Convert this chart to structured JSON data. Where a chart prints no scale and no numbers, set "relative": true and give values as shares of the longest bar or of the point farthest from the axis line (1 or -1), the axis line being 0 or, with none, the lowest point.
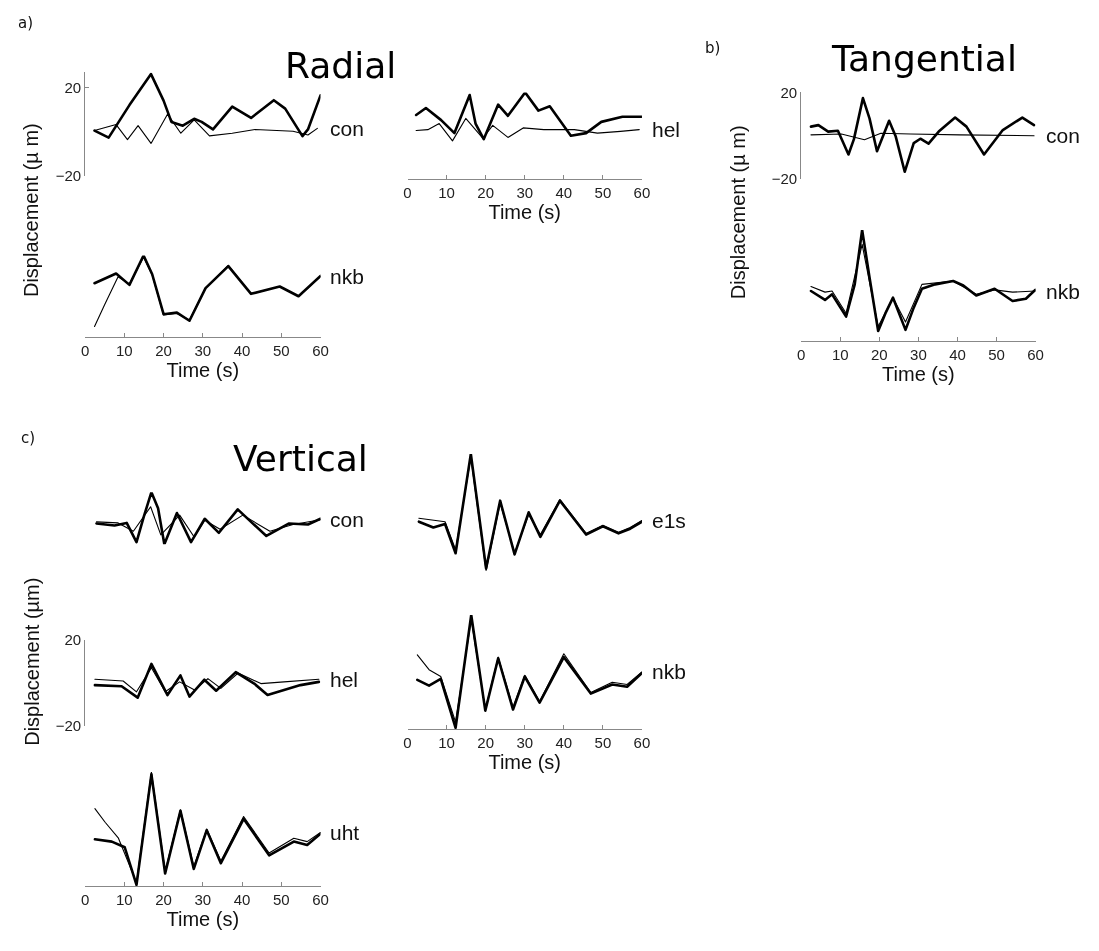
{
  "chart_data": [
    {
      "type": "line",
      "title": "Radial",
      "ylabel": "Displacement (µ m)",
      "annotations": [
        "a)",
        "con"
      ],
      "xlim": [
        0,
        60
      ],
      "ylim": [
        -20,
        27
      ],
      "yticks": [
        -20,
        20
      ],
      "tick_labels": "y",
      "series": [
        {
          "color": "#000000",
          "x": [
            2.4,
            6,
            11.3,
            16.8,
            20,
            22,
            24.9,
            27.8,
            29.7,
            32.6,
            37.5,
            42.3,
            48.1,
            51,
            55.4,
            56.8,
            60
          ],
          "values": [
            0.5,
            -2.7,
            12,
            26,
            14,
            4.4,
            2.7,
            5.8,
            4.4,
            1,
            11.3,
            6.2,
            14.2,
            10.4,
            -2,
            1,
            16.4
          ]
        },
        {
          "color": "#000000",
          "x": [
            2.4,
            7.9,
            10.8,
            13.5,
            16.8,
            21,
            24.4,
            27.8,
            31.7,
            37.5,
            43.3,
            53,
            56.8,
            59.2
          ],
          "values": [
            0.5,
            3.2,
            -3.6,
            2.7,
            -5.3,
            7.9,
            -0.7,
            5.3,
            -1.9,
            -0.7,
            1,
            0.2,
            -1.5,
            1.5
          ]
        }
      ]
    },
    {
      "type": "line",
      "xlabel": "Time (s)",
      "annotations": [
        "hel"
      ],
      "relative": true,
      "xlim": [
        0,
        60
      ],
      "xticks": [
        0,
        10,
        20,
        30,
        40,
        50,
        60
      ],
      "tick_labels": "x",
      "series": [
        {
          "color": "#000000",
          "x": [
            2.2,
            4.7,
            8.6,
            12,
            15.9,
            17.4,
            19.5,
            23.2,
            25.7,
            30.1,
            33.5,
            36.4,
            41.8,
            45.7,
            49.6,
            55,
            60
          ],
          "values": [
            0.74,
            0.82,
            0.68,
            0.53,
            0.97,
            0.64,
            0.46,
            0.86,
            0.73,
            1,
            0.79,
            0.84,
            0.5,
            0.53,
            0.66,
            0.72,
            0.72
          ]
        },
        {
          "color": "#000000",
          "x": [
            2.2,
            5.2,
            8.1,
            11.5,
            14.9,
            19.3,
            21.8,
            25.7,
            29.6,
            34.9,
            42.7,
            48.6,
            54.5,
            59.3
          ],
          "values": [
            0.56,
            0.57,
            0.64,
            0.44,
            0.7,
            0.47,
            0.62,
            0.48,
            0.59,
            0.57,
            0.57,
            0.53,
            0.55,
            0.57
          ]
        }
      ]
    },
    {
      "type": "line",
      "xlabel": "Time (s)",
      "annotations": [
        "nkb"
      ],
      "relative": true,
      "xlim": [
        0,
        60
      ],
      "xticks": [
        0,
        10,
        20,
        30,
        40,
        50,
        60
      ],
      "tick_labels": "x",
      "series": [
        {
          "color": "#000000",
          "x": [
            2.4,
            7.9,
            11.3,
            14.9,
            17.1,
            20,
            23.4,
            26.6,
            30.7,
            36.5,
            42.3,
            49.6,
            54.4,
            60
          ],
          "values": [
            0.66,
            0.78,
            0.64,
            1,
            0.77,
            0.28,
            0.3,
            0.2,
            0.6,
            0.87,
            0.53,
            0.62,
            0.5,
            0.75
          ]
        },
        {
          "color": "#000000",
          "x": [
            2.4,
            5,
            8.4,
            11.3,
            14.9,
            17.1,
            20,
            23.4,
            26.6,
            30.7,
            36.5,
            42.3,
            49.6,
            54.4,
            60
          ],
          "values": [
            0.13,
            0.4,
            0.74,
            0.65,
            0.98,
            0.76,
            0.27,
            0.29,
            0.21,
            0.6,
            0.88,
            0.53,
            0.62,
            0.5,
            0.74
          ]
        }
      ]
    },
    {
      "type": "line",
      "title": "Tangential",
      "ylabel": "Displacement (µ m)",
      "annotations": [
        "b)",
        "con"
      ],
      "xlim": [
        0,
        60
      ],
      "ylim": [
        -20,
        20
      ],
      "yticks": [
        -20,
        20
      ],
      "tick_labels": "y",
      "series": [
        {
          "color": "#000000",
          "x": [
            2.5,
            4.4,
            6.9,
            9.4,
            12.1,
            13.5,
            15.8,
            17.5,
            19.4,
            22.5,
            24.2,
            26.5,
            28.8,
            30.5,
            32.6,
            35.2,
            39.4,
            42.3,
            46.8,
            51.6,
            56.6,
            59.6
          ],
          "values": [
            4.2,
            4.9,
            1.9,
            2.3,
            -8.7,
            -1.6,
            17.4,
            7.9,
            -7.2,
            6.9,
            -0.4,
            -16.7,
            -3.4,
            -1.4,
            -3.7,
            1.9,
            8.4,
            4.2,
            -8.7,
            2.6,
            8.4,
            4.9
          ]
        },
        {
          "color": "#000000",
          "x": [
            2.5,
            10.3,
            16.2,
            20.4,
            28,
            40.6,
            59.6
          ],
          "values": [
            0.4,
            0.8,
            -1.9,
            1.1,
            0.8,
            0.4,
            0
          ]
        }
      ]
    },
    {
      "type": "line",
      "xlabel": "Time (s)",
      "annotations": [
        "nkb"
      ],
      "relative": true,
      "xlim": [
        0,
        60
      ],
      "xticks": [
        0,
        10,
        20,
        30,
        40,
        50,
        60
      ],
      "tick_labels": "x",
      "series": [
        {
          "color": "#000000",
          "x": [
            2.5,
            6.1,
            7.9,
            11.5,
            13.7,
            15.6,
            17.5,
            19.7,
            21.7,
            23.5,
            26.7,
            28.8,
            30.9,
            34.3,
            38.9,
            41.5,
            44.8,
            49.5,
            54.1,
            57.5,
            59.9
          ],
          "values": [
            0.45,
            0.37,
            0.42,
            0.22,
            0.51,
            1,
            0.57,
            0.09,
            0.26,
            0.39,
            0.1,
            0.3,
            0.47,
            0.51,
            0.54,
            0.5,
            0.41,
            0.47,
            0.36,
            0.38,
            0.46
          ]
        },
        {
          "color": "#000000",
          "x": [
            2.5,
            6.1,
            7.9,
            11.5,
            15.6,
            19.7,
            23.5,
            26.7,
            30.9,
            38.9,
            44.8,
            49.5,
            54.1,
            59.9
          ],
          "values": [
            0.49,
            0.44,
            0.45,
            0.25,
            0.87,
            0.13,
            0.39,
            0.17,
            0.51,
            0.54,
            0.42,
            0.46,
            0.44,
            0.45
          ]
        }
      ]
    },
    {
      "type": "line",
      "title": "Vertical",
      "annotations": [
        "c)",
        "con"
      ],
      "relative": true,
      "xlim": [
        0,
        60
      ],
      "tick_labels": false,
      "series": [
        {
          "color": "#000000",
          "x": [
            2.9,
            7.5,
            10.6,
            13.1,
            15,
            16.9,
            18.6,
            20.2,
            23.4,
            27,
            30.5,
            34.1,
            38.9,
            42.3,
            46.2,
            52,
            56.8,
            60
          ],
          "values": [
            0.4,
            0.36,
            0.41,
            0.04,
            0.54,
            1,
            0.69,
            0,
            0.6,
            0.04,
            0.49,
            0.22,
            0.67,
            0.43,
            0.16,
            0.4,
            0.38,
            0.49
          ]
        },
        {
          "color": "#000000",
          "x": [
            2.9,
            8.4,
            12.3,
            16.7,
            19.3,
            24.1,
            27.8,
            30.5,
            34.4,
            40.2,
            47.1,
            53,
            60
          ],
          "values": [
            0.43,
            0.41,
            0.25,
            0.72,
            0.18,
            0.56,
            0.14,
            0.46,
            0.29,
            0.56,
            0.25,
            0.38,
            0.47
          ]
        }
      ]
    },
    {
      "type": "line",
      "annotations": [
        "e1s"
      ],
      "relative": true,
      "xlim": [
        0,
        60
      ],
      "tick_labels": false,
      "series": [
        {
          "color": "#000000",
          "x": [
            2.9,
            6.6,
            9.6,
            12.3,
            16.2,
            20.1,
            23.7,
            27.4,
            31,
            34,
            39,
            45.7,
            50,
            54,
            57,
            60
          ],
          "values": [
            0.42,
            0.37,
            0.4,
            0.15,
            1,
            0.02,
            0.6,
            0.14,
            0.5,
            0.29,
            0.6,
            0.31,
            0.38,
            0.32,
            0.36,
            0.42
          ]
        },
        {
          "color": "#000000",
          "x": [
            2.9,
            9.6,
            12.3,
            16.2,
            20.1,
            23.7,
            27.4,
            31,
            34,
            39,
            45.7,
            50,
            54,
            57,
            60
          ],
          "values": [
            0.45,
            0.42,
            0.18,
            0.97,
            0,
            0.58,
            0.15,
            0.48,
            0.31,
            0.61,
            0.32,
            0.39,
            0.33,
            0.37,
            0.43
          ]
        }
      ]
    },
    {
      "type": "line",
      "ylabel": "Displacement (µm)",
      "annotations": [
        "hel"
      ],
      "xlim": [
        0,
        60
      ],
      "ylim": [
        -20,
        20
      ],
      "yticks": [
        -20,
        20
      ],
      "tick_labels": "y",
      "series": [
        {
          "color": "#000000",
          "x": [
            2.5,
            9.3,
            13.4,
            16.9,
            21,
            24.3,
            26.6,
            30.4,
            33.4,
            38.4,
            43.1,
            46.5,
            50.7,
            54.9,
            59.6
          ],
          "values": [
            -1.1,
            -1.6,
            -6.9,
            8.7,
            -5.7,
            3.4,
            -6.4,
            1.4,
            -3.7,
            4.9,
            -0.4,
            -5.7,
            -3.4,
            -1.1,
            0.4
          ]
        },
        {
          "color": "#000000",
          "x": [
            2.5,
            9.7,
            13.1,
            16.9,
            20.4,
            24.1,
            27.9,
            31.3,
            34.6,
            39,
            44.8,
            50.7,
            59.6
          ],
          "values": [
            1.6,
            0.8,
            -4.2,
            6.9,
            -4.2,
            0.4,
            -3.4,
            1.9,
            -2.6,
            4.5,
            -0.4,
            0.4,
            1.6
          ]
        }
      ]
    },
    {
      "type": "line",
      "xlabel": "Time (s)",
      "annotations": [
        "nkb"
      ],
      "relative": true,
      "xlim": [
        0,
        60
      ],
      "xticks": [
        0,
        10,
        20,
        30,
        40,
        50,
        60
      ],
      "tick_labels": "x",
      "series": [
        {
          "color": "#000000",
          "x": [
            2.5,
            5.5,
            8.5,
            12.3,
            16.3,
            19.9,
            23.2,
            27,
            30,
            33.8,
            40,
            46.9,
            52.4,
            56.2,
            60
          ],
          "values": [
            0.43,
            0.38,
            0.44,
            0.01,
            1,
            0.16,
            0.62,
            0.17,
            0.46,
            0.23,
            0.63,
            0.31,
            0.39,
            0.37,
            0.49
          ]
        },
        {
          "color": "#000000",
          "x": [
            2.5,
            5.5,
            8.5,
            12.3,
            16.3,
            19.9,
            23.2,
            27,
            30,
            33.8,
            40,
            46.9,
            52.4,
            56.2,
            60
          ],
          "values": [
            0.65,
            0.52,
            0.46,
            0.06,
            0.96,
            0.17,
            0.63,
            0.19,
            0.47,
            0.24,
            0.66,
            0.32,
            0.41,
            0.39,
            0.5
          ]
        }
      ]
    },
    {
      "type": "line",
      "xlabel": "Time (s)",
      "annotations": [
        "uht"
      ],
      "relative": true,
      "xlim": [
        0,
        60
      ],
      "xticks": [
        0,
        10,
        20,
        30,
        40,
        50,
        60
      ],
      "tick_labels": "x",
      "series": [
        {
          "color": "#000000",
          "x": [
            2.5,
            6.8,
            10.1,
            13.1,
            16.9,
            20.4,
            24.3,
            27.7,
            31,
            34.6,
            40.4,
            46.9,
            53.2,
            56.6,
            60
          ],
          "values": [
            0.41,
            0.39,
            0.34,
            0.01,
            0.98,
            0.11,
            0.66,
            0.15,
            0.49,
            0.2,
            0.59,
            0.27,
            0.39,
            0.36,
            0.46
          ]
        },
        {
          "color": "#000000",
          "x": [
            2.5,
            5.1,
            8.5,
            13.1,
            16.9,
            20.4,
            24.3,
            27.7,
            31,
            34.6,
            40.4,
            46.9,
            53.2,
            56.6,
            60
          ],
          "values": [
            0.68,
            0.56,
            0.42,
            0.03,
            1,
            0.13,
            0.67,
            0.17,
            0.5,
            0.22,
            0.61,
            0.29,
            0.42,
            0.39,
            0.47
          ]
        }
      ]
    }
  ]
}
